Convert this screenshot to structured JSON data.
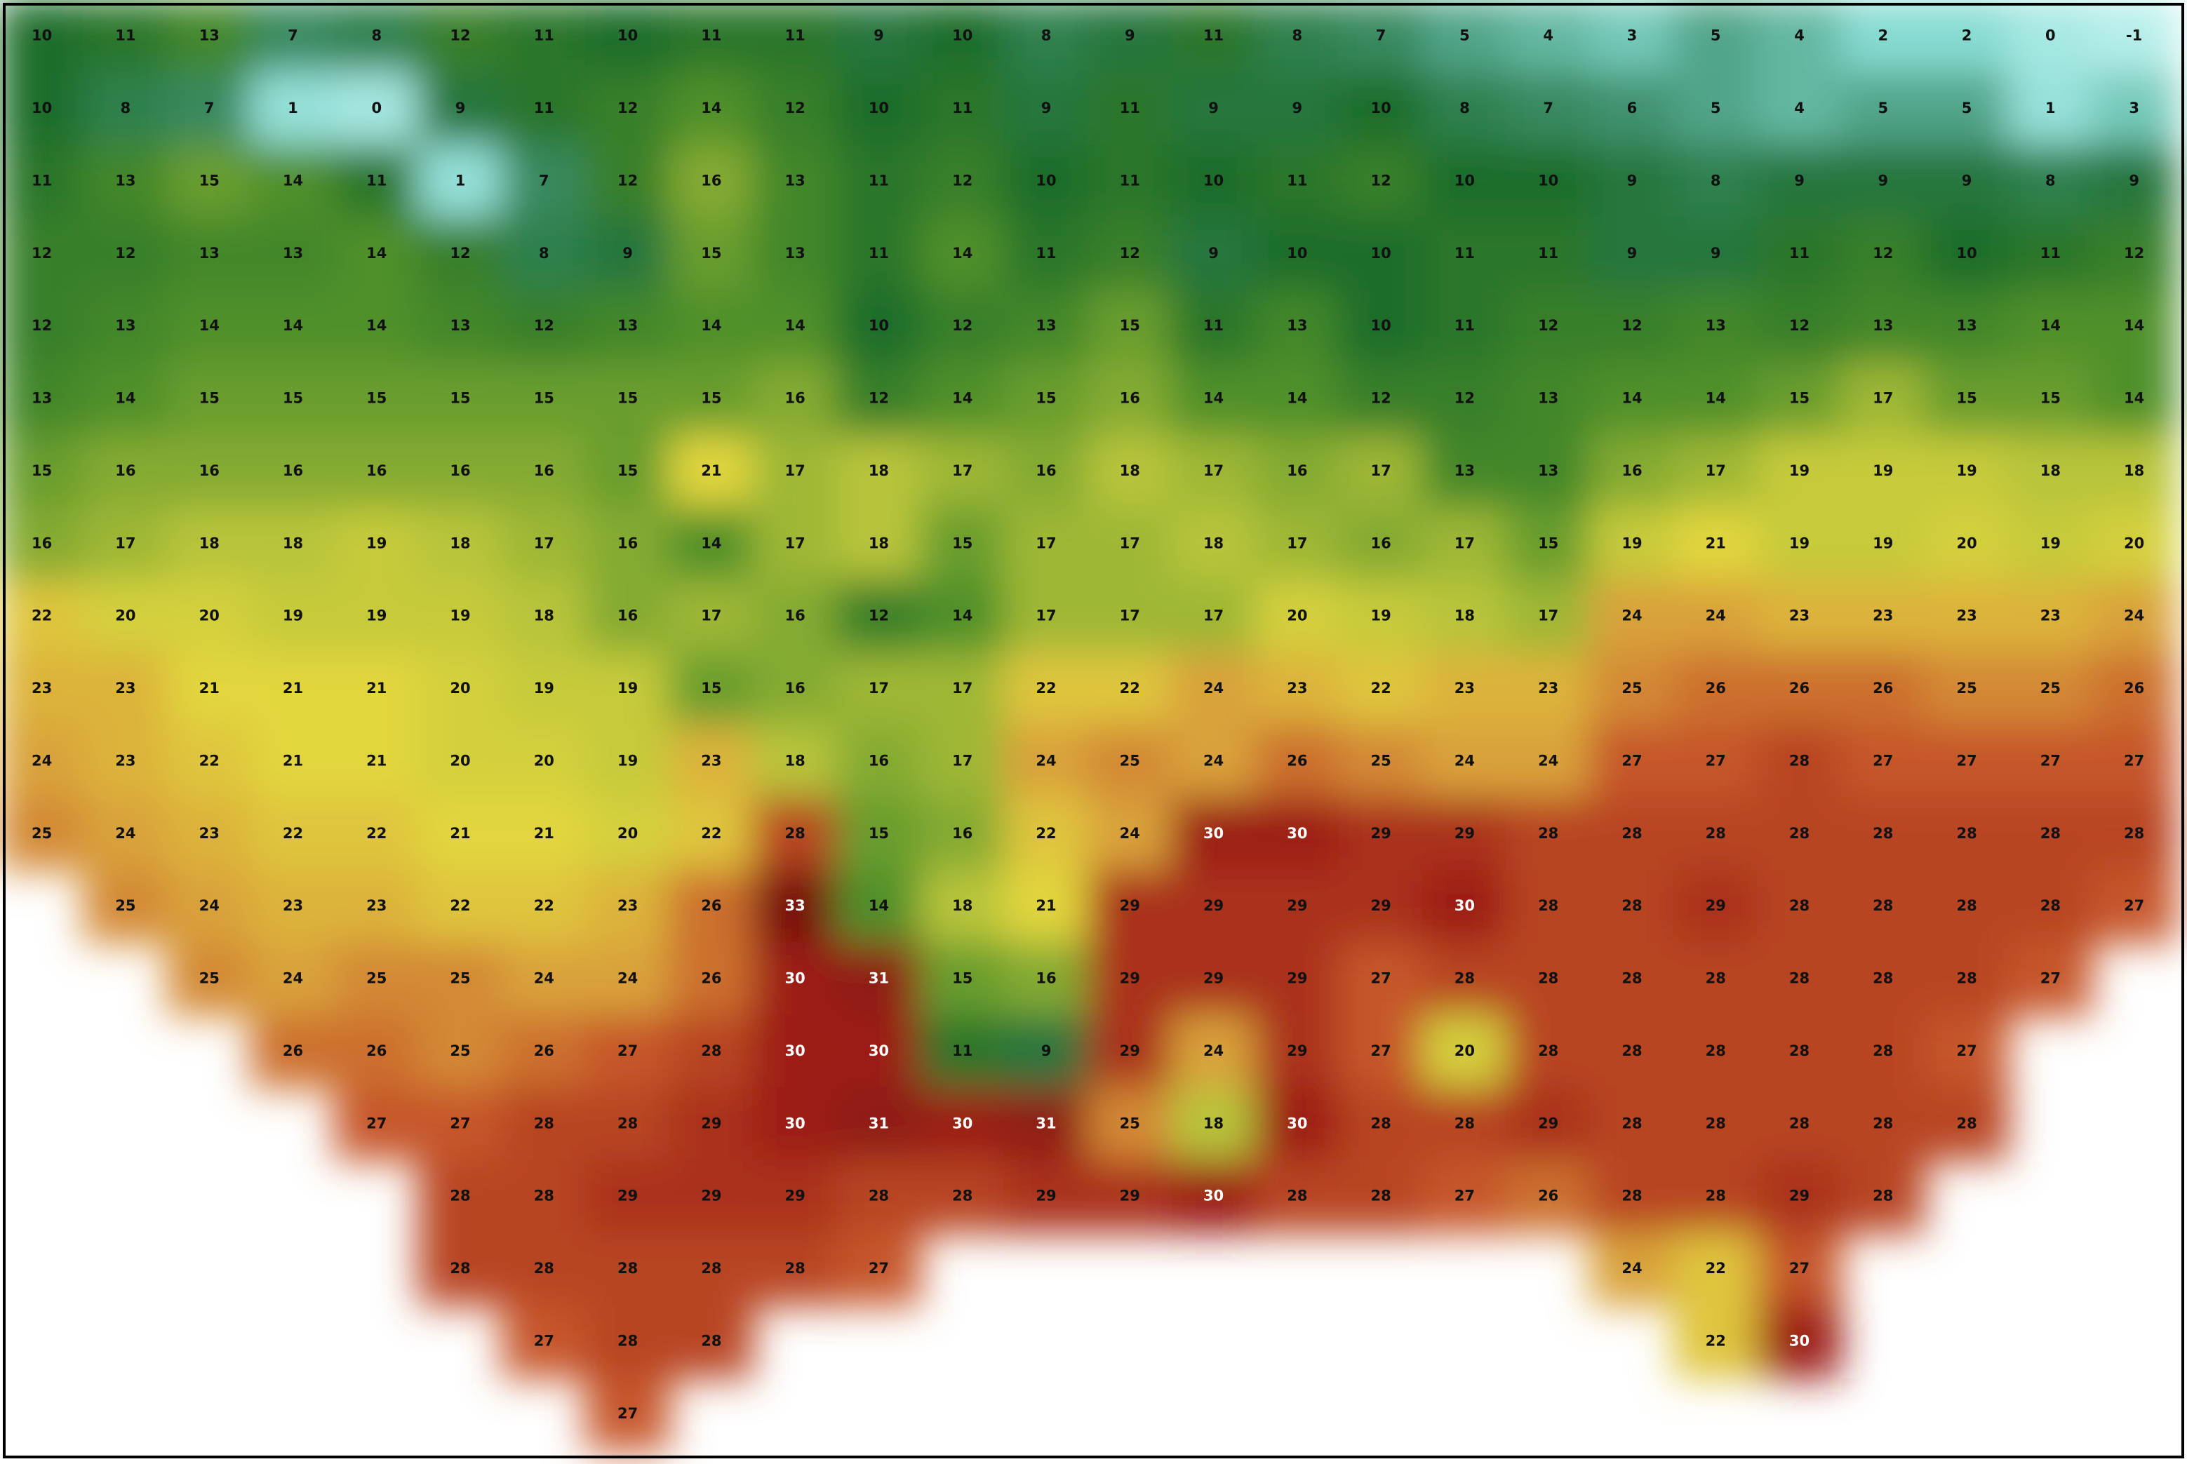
{
  "map": {
    "grid": [
      [
        10,
        11,
        13,
        7,
        8,
        12,
        11,
        10,
        11,
        11,
        9,
        10,
        8,
        9,
        11,
        8,
        7,
        5,
        4,
        3,
        5,
        4,
        2,
        2,
        0,
        -1
      ],
      [
        10,
        8,
        7,
        1,
        0,
        9,
        11,
        12,
        14,
        12,
        10,
        11,
        9,
        11,
        9,
        9,
        10,
        8,
        7,
        6,
        5,
        4,
        5,
        5,
        1,
        3
      ],
      [
        11,
        13,
        15,
        14,
        11,
        1,
        7,
        12,
        16,
        13,
        11,
        12,
        10,
        11,
        10,
        11,
        12,
        10,
        10,
        9,
        8,
        9,
        9,
        9,
        8,
        9
      ],
      [
        12,
        12,
        13,
        13,
        14,
        12,
        8,
        9,
        15,
        13,
        11,
        14,
        11,
        12,
        9,
        10,
        10,
        11,
        11,
        9,
        9,
        11,
        12,
        10,
        11,
        12
      ],
      [
        12,
        13,
        14,
        14,
        14,
        13,
        12,
        13,
        14,
        14,
        10,
        12,
        13,
        15,
        11,
        13,
        10,
        11,
        12,
        12,
        13,
        12,
        13,
        13,
        14,
        14
      ],
      [
        13,
        14,
        15,
        15,
        15,
        15,
        15,
        15,
        15,
        16,
        12,
        14,
        15,
        16,
        14,
        14,
        12,
        12,
        13,
        14,
        14,
        15,
        17,
        15,
        15,
        14
      ],
      [
        15,
        16,
        16,
        16,
        16,
        16,
        16,
        15,
        21,
        17,
        18,
        17,
        16,
        18,
        17,
        16,
        17,
        13,
        13,
        16,
        17,
        19,
        19,
        19,
        18,
        18
      ],
      [
        16,
        17,
        18,
        18,
        19,
        18,
        17,
        16,
        14,
        17,
        18,
        15,
        17,
        17,
        18,
        17,
        16,
        17,
        15,
        19,
        21,
        19,
        19,
        20,
        19,
        20
      ],
      [
        22,
        20,
        20,
        19,
        19,
        19,
        18,
        16,
        17,
        16,
        12,
        14,
        17,
        17,
        17,
        20,
        19,
        18,
        17,
        24,
        24,
        23,
        23,
        23,
        23,
        24
      ],
      [
        23,
        23,
        21,
        21,
        21,
        20,
        19,
        19,
        15,
        16,
        17,
        17,
        22,
        22,
        24,
        23,
        22,
        23,
        23,
        25,
        26,
        26,
        26,
        25,
        25,
        26
      ],
      [
        24,
        23,
        22,
        21,
        21,
        20,
        20,
        19,
        23,
        18,
        16,
        17,
        24,
        25,
        24,
        26,
        25,
        24,
        24,
        27,
        27,
        28,
        27,
        27,
        27,
        27
      ],
      [
        25,
        24,
        23,
        22,
        22,
        21,
        21,
        20,
        22,
        28,
        15,
        16,
        22,
        24,
        30,
        30,
        29,
        29,
        28,
        28,
        28,
        28,
        28,
        28,
        28,
        28
      ],
      [
        null,
        25,
        24,
        23,
        23,
        22,
        22,
        23,
        26,
        33,
        14,
        18,
        21,
        29,
        29,
        29,
        29,
        30,
        28,
        28,
        29,
        28,
        28,
        28,
        28,
        27
      ],
      [
        null,
        null,
        25,
        24,
        25,
        25,
        24,
        24,
        26,
        30,
        31,
        15,
        16,
        29,
        29,
        29,
        27,
        28,
        28,
        28,
        28,
        28,
        28,
        28,
        27,
        null
      ],
      [
        null,
        null,
        null,
        26,
        26,
        25,
        26,
        27,
        28,
        30,
        30,
        11,
        9,
        29,
        24,
        29,
        27,
        20,
        28,
        28,
        28,
        28,
        28,
        27,
        null,
        null
      ],
      [
        null,
        null,
        null,
        null,
        27,
        27,
        28,
        28,
        29,
        30,
        31,
        30,
        31,
        25,
        18,
        30,
        28,
        28,
        29,
        28,
        28,
        28,
        28,
        28,
        null,
        null
      ],
      [
        null,
        null,
        null,
        null,
        null,
        28,
        28,
        29,
        29,
        29,
        28,
        28,
        29,
        29,
        30,
        28,
        28,
        27,
        26,
        28,
        28,
        29,
        28,
        null,
        null,
        null
      ],
      [
        null,
        null,
        null,
        null,
        null,
        28,
        28,
        28,
        28,
        28,
        27,
        null,
        null,
        null,
        null,
        null,
        null,
        null,
        null,
        24,
        22,
        27,
        null,
        null,
        null,
        null
      ],
      [
        null,
        null,
        null,
        null,
        null,
        null,
        27,
        28,
        28,
        null,
        null,
        null,
        null,
        null,
        null,
        null,
        null,
        null,
        null,
        null,
        22,
        30,
        null,
        null,
        null,
        null
      ],
      [
        null,
        null,
        null,
        null,
        null,
        null,
        null,
        27,
        null,
        null,
        null,
        null,
        null,
        null,
        null,
        null,
        null,
        null,
        null,
        null,
        null,
        null,
        null,
        null,
        null,
        null
      ]
    ],
    "colormap": [
      [
        -2,
        "#c6f4f2"
      ],
      [
        2,
        "#86dbd2"
      ],
      [
        6,
        "#3f9270"
      ],
      [
        10,
        "#1e6d2c"
      ],
      [
        14,
        "#4f902b"
      ],
      [
        18,
        "#b8c43a"
      ],
      [
        21,
        "#e2d63e"
      ],
      [
        24,
        "#d9a23a"
      ],
      [
        27,
        "#c6572a"
      ],
      [
        30,
        "#9c1f16"
      ],
      [
        33,
        "#760f0e"
      ]
    ],
    "light_label_from": 30
  }
}
